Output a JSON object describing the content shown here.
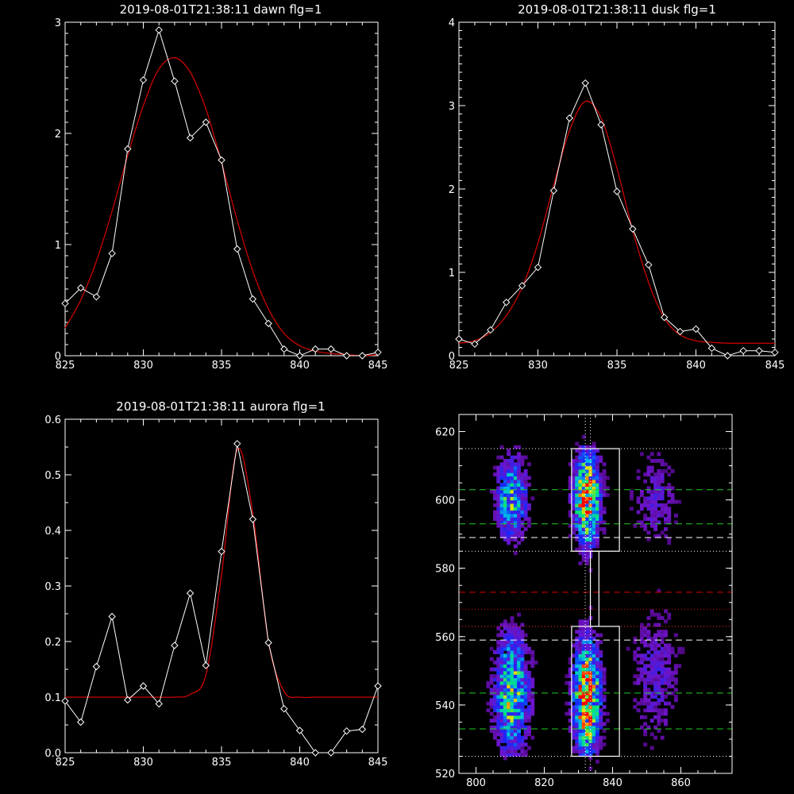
{
  "colors": {
    "data_line": "#ffffff",
    "fit_line": "#cc0000",
    "axes": "#ffffff",
    "background": "#000000"
  },
  "chart_data": [
    {
      "type": "line",
      "title": "2019-08-01T21:38:11 dawn flg=1",
      "xlim": [
        825,
        845
      ],
      "ylim": [
        0,
        3
      ],
      "xticks": [
        825,
        830,
        835,
        840,
        845
      ],
      "yticks": [
        0,
        1,
        2,
        3
      ],
      "series": [
        {
          "x": [
            825,
            826,
            827,
            828,
            829,
            830,
            831,
            832,
            833,
            834,
            835,
            836,
            837,
            838,
            839,
            840,
            841,
            842,
            843,
            844,
            845
          ],
          "values": [
            0.47,
            0.61,
            0.53,
            0.92,
            1.86,
            2.48,
            2.93,
            2.47,
            1.96,
            2.1,
            1.76,
            0.96,
            0.51,
            0.29,
            0.06,
            0.0,
            0.06,
            0.06,
            0.0,
            0.0,
            0.03
          ]
        },
        {
          "x": [
            825,
            826,
            827,
            828,
            829,
            830,
            831,
            832,
            833,
            834,
            835,
            836,
            837,
            838,
            839,
            840,
            841,
            842,
            843,
            844,
            845
          ],
          "values": [
            0.25,
            0.5,
            0.85,
            1.3,
            1.8,
            2.25,
            2.58,
            2.68,
            2.55,
            2.22,
            1.74,
            1.22,
            0.76,
            0.42,
            0.2,
            0.09,
            0.04,
            0.02,
            0.01,
            0.0,
            0.01
          ]
        }
      ]
    },
    {
      "type": "line",
      "title": "2019-08-01T21:38:11 dusk flg=1",
      "xlim": [
        825,
        845
      ],
      "ylim": [
        0,
        4
      ],
      "xticks": [
        825,
        830,
        835,
        840,
        845
      ],
      "yticks": [
        0,
        1,
        2,
        3,
        4
      ],
      "series": [
        {
          "x": [
            825,
            826,
            827,
            828,
            829,
            830,
            831,
            832,
            833,
            834,
            835,
            836,
            837,
            838,
            839,
            840,
            841,
            842,
            843,
            844,
            845
          ],
          "values": [
            0.2,
            0.14,
            0.31,
            0.64,
            0.84,
            1.06,
            1.98,
            2.85,
            3.27,
            2.77,
            1.97,
            1.52,
            1.09,
            0.46,
            0.29,
            0.32,
            0.09,
            0.0,
            0.06,
            0.06,
            0.04
          ]
        },
        {
          "x": [
            825,
            826,
            827,
            828,
            829,
            830,
            831,
            832,
            833,
            834,
            835,
            836,
            837,
            838,
            839,
            840,
            841,
            842,
            843,
            844,
            845
          ],
          "values": [
            0.15,
            0.18,
            0.28,
            0.48,
            0.82,
            1.35,
            2.05,
            2.7,
            3.05,
            2.85,
            2.25,
            1.5,
            0.88,
            0.45,
            0.25,
            0.18,
            0.16,
            0.15,
            0.15,
            0.15,
            0.15
          ]
        }
      ]
    },
    {
      "type": "line",
      "title": "2019-08-01T21:38:11 aurora flg=1",
      "xlim": [
        825,
        845
      ],
      "ylim": [
        0,
        0.6
      ],
      "xticks": [
        825,
        830,
        835,
        840,
        845
      ],
      "yticks": [
        0.0,
        0.1,
        0.2,
        0.3,
        0.4,
        0.5,
        0.6
      ],
      "yticklabels": [
        "0.0",
        "0.1",
        "0.2",
        "0.3",
        "0.4",
        "0.5",
        "0.6"
      ],
      "series": [
        {
          "x": [
            825,
            826,
            827,
            828,
            829,
            830,
            831,
            832,
            833,
            834,
            835,
            836,
            837,
            838,
            839,
            840,
            841,
            842,
            843,
            844,
            845
          ],
          "values": [
            0.093,
            0.055,
            0.155,
            0.245,
            0.095,
            0.12,
            0.088,
            0.193,
            0.287,
            0.157,
            0.362,
            0.556,
            0.42,
            0.198,
            0.079,
            0.04,
            0.0,
            0.0,
            0.039,
            0.042,
            0.12
          ]
        },
        {
          "x": [
            825,
            826,
            827,
            828,
            829,
            830,
            831,
            832,
            833,
            834,
            835,
            836,
            837,
            838,
            839,
            840,
            841,
            842,
            843,
            844,
            845
          ],
          "values": [
            0.1,
            0.1,
            0.1,
            0.1,
            0.1,
            0.1,
            0.1,
            0.1,
            0.105,
            0.14,
            0.32,
            0.545,
            0.43,
            0.2,
            0.11,
            0.1,
            0.1,
            0.1,
            0.1,
            0.1,
            0.1
          ]
        }
      ]
    },
    {
      "type": "heatmap",
      "xlim": [
        795,
        875
      ],
      "ylim": [
        520,
        625
      ],
      "xticks": [
        800,
        820,
        840,
        860
      ],
      "yticks": [
        520,
        540,
        560,
        580,
        600,
        620
      ],
      "blobs": [
        {
          "x": 810,
          "y": 600,
          "sx": 3,
          "sy": 8,
          "amp": 0.55
        },
        {
          "x": 810,
          "y": 543,
          "sx": 3.5,
          "sy": 12,
          "amp": 0.6
        },
        {
          "x": 832,
          "y": 600,
          "sx": 2.6,
          "sy": 9,
          "amp": 0.9
        },
        {
          "x": 832,
          "y": 542,
          "sx": 2.6,
          "sy": 11,
          "amp": 0.95
        },
        {
          "x": 852,
          "y": 548,
          "sx": 5,
          "sy": 14,
          "amp": 0.2
        },
        {
          "x": 852,
          "y": 600,
          "sx": 5,
          "sy": 10,
          "amp": 0.18
        }
      ],
      "boxes": [
        {
          "x0": 828,
          "x1": 842,
          "y0": 525,
          "y1": 563
        },
        {
          "x0": 828,
          "x1": 842,
          "y0": 585,
          "y1": 615
        },
        {
          "x0": 833.5,
          "x1": 836,
          "y0": 563,
          "y1": 585
        }
      ],
      "hlines_white_dotted": [
        525,
        563,
        585,
        615
      ],
      "hlines_white_dashed": [
        559,
        589
      ],
      "hlines_green_dashed": [
        533,
        543.5,
        593,
        603
      ],
      "hlines_red_dashed": [
        573
      ],
      "hlines_red_dotted": [
        563,
        568
      ],
      "vlines_white_dotted": [
        832,
        833.5
      ]
    }
  ]
}
